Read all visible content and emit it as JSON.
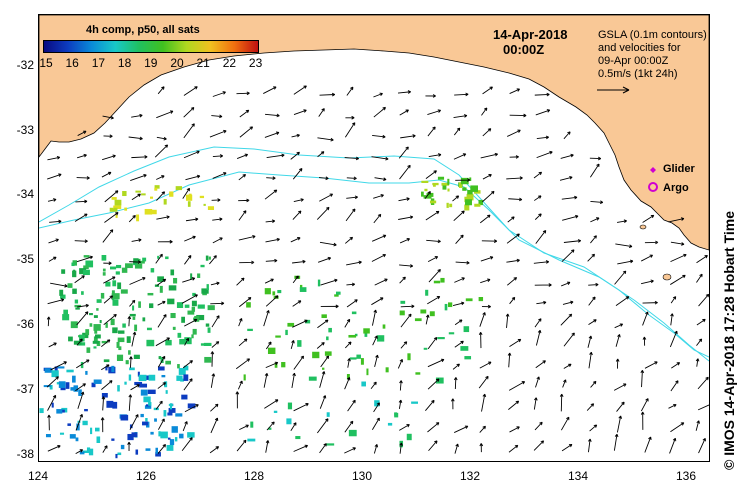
{
  "colorbar": {
    "title": "4h comp, p50, all sats",
    "ticks": [
      "15",
      "16",
      "17",
      "18",
      "19",
      "20",
      "21",
      "22",
      "23"
    ],
    "colors": [
      "#0a0a80",
      "#0c3cc0",
      "#0a8ad8",
      "#18c8c8",
      "#20c060",
      "#40c020",
      "#b0d820",
      "#f0c020",
      "#f07010",
      "#c01010"
    ]
  },
  "header": {
    "date": "14-Apr-2018",
    "time": "00:00Z"
  },
  "legend": {
    "line1": "GSLA (0.1m contours)",
    "line2": "and velocities for",
    "line3": "09-Apr 00:00Z",
    "line4": "0.5m/s (1kt 24h)",
    "glider": "Glider",
    "argo": "Argo",
    "glider_color": "#d000d0",
    "argo_color": "#d000d0"
  },
  "axes": {
    "x_ticks": [
      "124",
      "126",
      "128",
      "130",
      "132",
      "134",
      "136"
    ],
    "y_ticks": [
      "-32",
      "-33",
      "-34",
      "-35",
      "-36",
      "-37",
      "-38"
    ]
  },
  "credit": "© IMOS 14-Apr-2018 17:28 Hobart Time",
  "colors": {
    "land": "#f9c896",
    "contour": "#40d8e8",
    "arrow": "#000000"
  }
}
